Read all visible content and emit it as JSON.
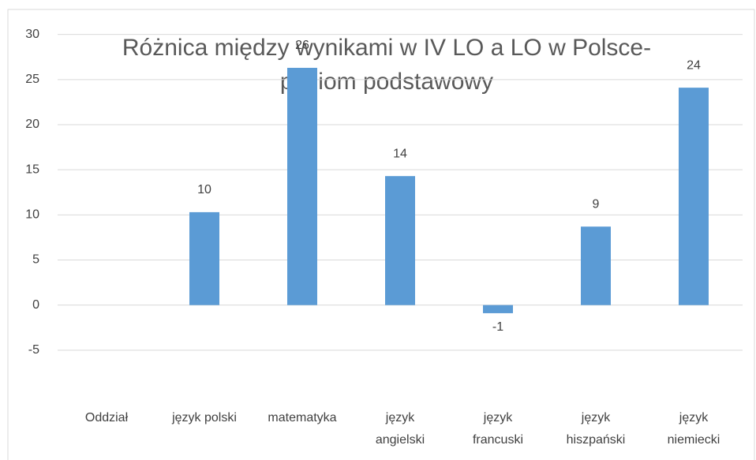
{
  "chart_data": {
    "type": "bar",
    "title": [
      "Różnica między wynikami w IV LO a LO w Polsce-",
      "poziom podstawowy"
    ],
    "categories": [
      "Oddział",
      "język polski",
      "matematyka",
      "język angielski",
      "język francuski",
      "język hiszpański",
      "język niemiecki"
    ],
    "values": [
      null,
      10.3,
      26.3,
      14.3,
      -0.9,
      8.7,
      24.1
    ],
    "value_labels": [
      null,
      "10",
      "26",
      "14",
      "-1",
      "9",
      "24"
    ],
    "color": "#5b9bd5",
    "ylim": [
      -5,
      30
    ],
    "yticks": [
      -5,
      0,
      5,
      10,
      15,
      20,
      25,
      30
    ],
    "grid": true
  }
}
